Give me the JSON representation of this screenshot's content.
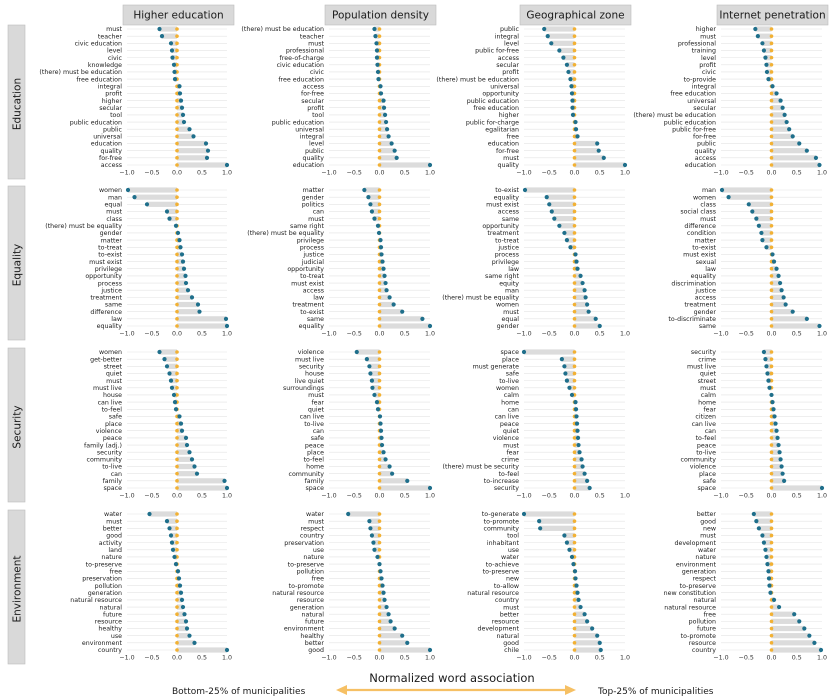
{
  "chart_data": {
    "type": "dumbbell-facet",
    "xlim": [
      -1.0,
      1.0
    ],
    "xticks": [
      -1.0,
      -0.5,
      0.0,
      0.5,
      1.0
    ],
    "xtick_labels": [
      "−1.0",
      "−0.5",
      "0.0",
      "0.5",
      "1.0"
    ],
    "xlabel": "Normalized word association",
    "left_note": "Bottom-25% of municipalities",
    "right_note": "Top-25% of municipalities",
    "colors": {
      "point": "#1f6f8b",
      "zero": "#f2b134",
      "bar": "#dcdcdc",
      "arrow": "#f6c064"
    },
    "columns": [
      "Higher education",
      "Population density",
      "Geographical zone",
      "Internet penetration"
    ],
    "rows": [
      "Education",
      "Equality",
      "Security",
      "Environment"
    ],
    "panels": [
      [
        {
          "labels": [
            "must",
            "teacher",
            "civic education",
            "level",
            "civic",
            "knowledge",
            "(there) must be education",
            "free education",
            "integral",
            "profit",
            "higher",
            "secular",
            "tool",
            "public education",
            "public",
            "universal",
            "education",
            "quality",
            "for-free",
            "access"
          ],
          "values": [
            -0.35,
            -0.3,
            -0.12,
            -0.1,
            -0.09,
            -0.06,
            -0.05,
            -0.04,
            0.05,
            0.06,
            0.08,
            0.1,
            0.12,
            0.14,
            0.25,
            0.33,
            0.58,
            0.62,
            0.6,
            1.0
          ]
        },
        {
          "labels": [
            "(there) must be education",
            "teacher",
            "must",
            "professional",
            "free-of-charge",
            "civic education",
            "civic",
            "free education",
            "access",
            "for-free",
            "secular",
            "profit",
            "tool",
            "public education",
            "universal",
            "integral",
            "level",
            "public",
            "quality",
            "education"
          ],
          "values": [
            -0.1,
            -0.08,
            -0.06,
            -0.05,
            -0.05,
            -0.04,
            -0.03,
            -0.02,
            0.02,
            0.03,
            0.08,
            0.09,
            0.11,
            0.13,
            0.15,
            0.18,
            0.24,
            0.3,
            0.34,
            1.0
          ]
        },
        {
          "labels": [
            "public",
            "integral",
            "level",
            "public for-free",
            "access",
            "secular",
            "profit",
            "(there) must be education",
            "universal",
            "opportunity",
            "public education",
            "free education",
            "higher",
            "public for-charge",
            "egalitarian",
            "free",
            "education",
            "for-free",
            "must",
            "quality"
          ],
          "values": [
            -0.6,
            -0.53,
            -0.46,
            -0.3,
            -0.22,
            -0.15,
            -0.12,
            -0.08,
            -0.06,
            -0.05,
            -0.04,
            -0.04,
            -0.03,
            0.02,
            0.03,
            0.06,
            0.45,
            0.48,
            0.58,
            1.0
          ]
        },
        {
          "labels": [
            "higher",
            "must",
            "professional",
            "training",
            "level",
            "profit",
            "civic",
            "to-provide",
            "integral",
            "free education",
            "universal",
            "secular",
            "(there) must be education",
            "public education",
            "public for-free",
            "for-free",
            "public",
            "quality",
            "access",
            "education"
          ],
          "values": [
            -0.32,
            -0.27,
            -0.18,
            -0.15,
            -0.12,
            -0.1,
            -0.09,
            -0.06,
            0.02,
            0.1,
            0.18,
            0.22,
            0.26,
            0.3,
            0.35,
            0.42,
            0.55,
            0.7,
            0.88,
            0.95
          ]
        }
      ],
      [
        {
          "labels": [
            "women",
            "man",
            "equal",
            "must",
            "class",
            "(there) must be equality",
            "gender",
            "matter",
            "to-treat",
            "to-exist",
            "must exist",
            "privilege",
            "opportunity",
            "process",
            "justice",
            "treatment",
            "same",
            "difference",
            "law",
            "equality"
          ],
          "values": [
            -0.98,
            -0.85,
            -0.6,
            -0.2,
            -0.15,
            -0.02,
            0.02,
            0.05,
            0.07,
            0.1,
            0.12,
            0.14,
            0.17,
            0.18,
            0.22,
            0.3,
            0.42,
            0.45,
            0.98,
            1.0
          ]
        },
        {
          "labels": [
            "matter",
            "gender",
            "politics",
            "can",
            "must",
            "same right",
            "(there) must be equality",
            "privilege",
            "process",
            "justice",
            "judicial",
            "opportunity",
            "to-treat",
            "must exist",
            "access",
            "law",
            "treatment",
            "to-exist",
            "same",
            "equality"
          ],
          "values": [
            -0.3,
            -0.22,
            -0.18,
            -0.15,
            -0.1,
            -0.03,
            -0.01,
            0.02,
            0.03,
            0.04,
            0.06,
            0.08,
            0.1,
            0.12,
            0.14,
            0.2,
            0.28,
            0.45,
            0.85,
            1.0
          ]
        },
        {
          "labels": [
            "to-exist",
            "equality",
            "must exist",
            "access",
            "same",
            "opportunity",
            "treatment",
            "to-treat",
            "justice",
            "process",
            "privilege",
            "law",
            "same right",
            "equity",
            "man",
            "(there) must be equality",
            "women",
            "must",
            "equal",
            "gender"
          ],
          "values": [
            -0.98,
            -0.55,
            -0.5,
            -0.45,
            -0.4,
            -0.3,
            -0.2,
            -0.15,
            -0.08,
            0.02,
            0.04,
            0.06,
            0.12,
            0.16,
            0.2,
            0.22,
            0.25,
            0.28,
            0.42,
            0.5
          ]
        },
        {
          "labels": [
            "man",
            "women",
            "class",
            "social class",
            "must",
            "difference",
            "condition",
            "matter",
            "to-exist",
            "must exist",
            "sexual",
            "law",
            "equality",
            "discrimination",
            "justice",
            "access",
            "treatment",
            "gender",
            "to-discriminate",
            "same"
          ],
          "values": [
            -0.98,
            -0.85,
            -0.45,
            -0.38,
            -0.3,
            -0.25,
            -0.2,
            -0.18,
            -0.1,
            0.02,
            0.05,
            0.1,
            0.14,
            0.17,
            0.2,
            0.24,
            0.28,
            0.42,
            0.7,
            0.95
          ]
        }
      ],
      [
        {
          "labels": [
            "women",
            "get-better",
            "street",
            "quiet",
            "must",
            "must live",
            "house",
            "can live",
            "to-feel",
            "safe",
            "place",
            "violence",
            "peace",
            "family (adj.)",
            "security",
            "community",
            "to-live",
            "can",
            "family",
            "space"
          ],
          "values": [
            -0.35,
            -0.25,
            -0.2,
            -0.15,
            -0.12,
            -0.1,
            -0.06,
            -0.04,
            -0.02,
            0.05,
            0.08,
            0.1,
            0.18,
            0.2,
            0.25,
            0.3,
            0.35,
            0.4,
            0.95,
            1.0
          ]
        },
        {
          "labels": [
            "violence",
            "must live",
            "security",
            "house",
            "live quiet",
            "surroundings",
            "must",
            "fear",
            "quiet",
            "can live",
            "to-live",
            "can",
            "safe",
            "peace",
            "place",
            "to-feel",
            "home",
            "community",
            "family",
            "space"
          ],
          "values": [
            -0.45,
            -0.25,
            -0.2,
            -0.18,
            -0.15,
            -0.14,
            -0.1,
            -0.05,
            -0.03,
            0.01,
            0.02,
            0.03,
            0.04,
            0.05,
            0.08,
            0.12,
            0.2,
            0.25,
            0.55,
            1.0
          ]
        },
        {
          "labels": [
            "space",
            "place",
            "must generate",
            "safe",
            "to-live",
            "women",
            "calm",
            "home",
            "can",
            "can live",
            "peace",
            "quiet",
            "violence",
            "must",
            "fear",
            "crime",
            "(there) must be security",
            "to-feel",
            "to-increase",
            "security"
          ],
          "values": [
            -1.0,
            -0.25,
            -0.2,
            -0.18,
            -0.15,
            -0.1,
            -0.05,
            0.02,
            0.03,
            0.04,
            0.05,
            0.06,
            0.07,
            0.08,
            0.1,
            0.14,
            0.16,
            0.2,
            0.25,
            0.3
          ]
        },
        {
          "labels": [
            "security",
            "crime",
            "must live",
            "quiet",
            "street",
            "must",
            "calm",
            "home",
            "fear",
            "citizen",
            "can live",
            "can",
            "to-feel",
            "peace",
            "to-live",
            "community",
            "violence",
            "place",
            "safe",
            "space"
          ],
          "values": [
            -0.15,
            -0.12,
            -0.1,
            -0.08,
            -0.06,
            -0.04,
            0.0,
            0.02,
            0.04,
            0.06,
            0.08,
            0.1,
            0.12,
            0.14,
            0.16,
            0.18,
            0.2,
            0.22,
            0.25,
            1.0
          ]
        }
      ],
      [
        {
          "labels": [
            "water",
            "must",
            "better",
            "good",
            "activity",
            "land",
            "nature",
            "to-preserve",
            "free",
            "preservation",
            "pollution",
            "generation",
            "natural resource",
            "natural",
            "future",
            "resource",
            "healthy",
            "use",
            "environment",
            "country"
          ],
          "values": [
            -0.55,
            -0.2,
            -0.15,
            -0.12,
            -0.1,
            -0.08,
            -0.05,
            -0.02,
            0.02,
            0.04,
            0.06,
            0.08,
            0.1,
            0.12,
            0.15,
            0.18,
            0.2,
            0.25,
            0.35,
            1.0
          ]
        },
        {
          "labels": [
            "water",
            "must",
            "respect",
            "country",
            "preservation",
            "use",
            "nature",
            "to-preserve",
            "pollution",
            "free",
            "to-promote",
            "natural resource",
            "resource",
            "generation",
            "natural",
            "future",
            "environment",
            "healthy",
            "better",
            "good"
          ],
          "values": [
            -0.62,
            -0.2,
            -0.18,
            -0.15,
            -0.12,
            -0.1,
            -0.04,
            0.0,
            0.02,
            0.04,
            0.06,
            0.08,
            0.1,
            0.14,
            0.18,
            0.22,
            0.3,
            0.45,
            0.55,
            1.0
          ]
        },
        {
          "labels": [
            "to-generate",
            "to-promote",
            "community",
            "tool",
            "inhabitant",
            "use",
            "water",
            "to-achieve",
            "to-preserve",
            "new",
            "to-allow",
            "natural resource",
            "country",
            "must",
            "better",
            "resource",
            "development",
            "natural",
            "good",
            "chile"
          ],
          "values": [
            -1.0,
            -0.7,
            -0.68,
            -0.2,
            -0.15,
            -0.1,
            -0.05,
            -0.02,
            0.01,
            0.02,
            0.04,
            0.06,
            0.08,
            0.12,
            0.2,
            0.25,
            0.35,
            0.45,
            0.5,
            0.52
          ]
        },
        {
          "labels": [
            "better",
            "good",
            "new",
            "must",
            "development",
            "water",
            "nature",
            "environment",
            "generation",
            "respect",
            "to-preserve",
            "new constitution",
            "natural",
            "natural resource",
            "free",
            "pollution",
            "future",
            "to-promote",
            "resource",
            "country"
          ],
          "values": [
            -0.35,
            -0.3,
            -0.25,
            -0.18,
            -0.15,
            -0.12,
            -0.1,
            -0.08,
            -0.06,
            -0.05,
            -0.04,
            -0.02,
            0.05,
            0.15,
            0.45,
            0.55,
            0.65,
            0.75,
            0.85,
            0.98
          ]
        }
      ]
    ]
  }
}
